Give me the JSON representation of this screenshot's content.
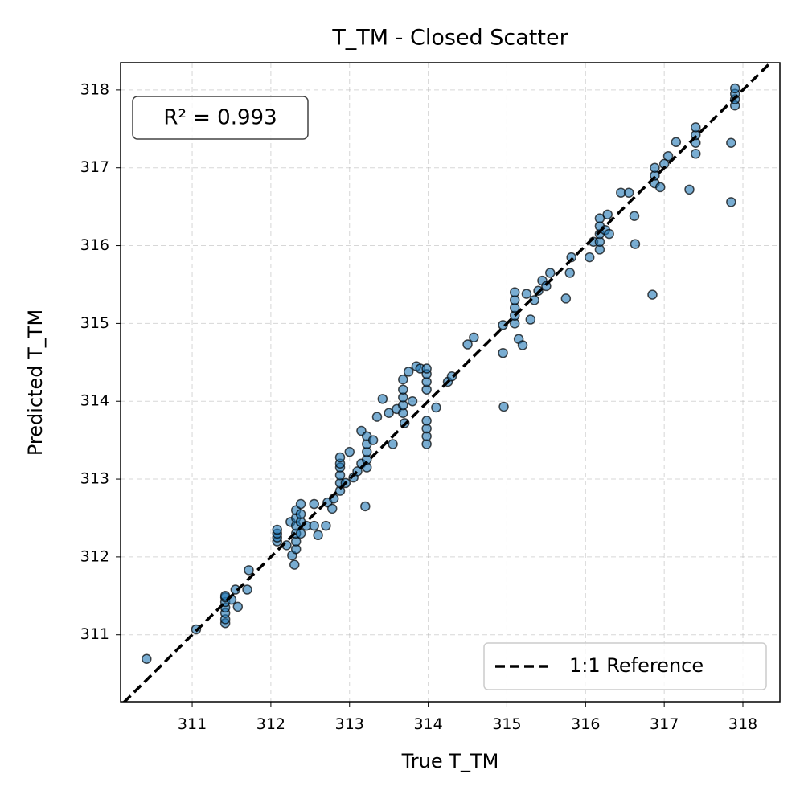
{
  "chart_data": {
    "type": "scatter",
    "title": "T_TM - Closed Scatter",
    "x_label": "True T_TM",
    "y_label": "Predicted T_TM",
    "annotation": "R² = 0.993",
    "xlim": [
      310.09,
      318.47
    ],
    "ylim": [
      310.14,
      318.35
    ],
    "xticks": [
      311,
      312,
      313,
      314,
      315,
      316,
      317,
      318
    ],
    "yticks": [
      311,
      312,
      313,
      314,
      315,
      316,
      317,
      318
    ],
    "grid": true,
    "legend": "lower right",
    "points": {
      "color": "#1f77b4",
      "x": [
        310.42,
        311.05,
        311.42,
        311.42,
        311.42,
        311.42,
        311.42,
        311.42,
        311.42,
        311.5,
        311.58,
        311.55,
        311.7,
        311.72,
        312.08,
        312.08,
        312.08,
        312.08,
        312.2,
        312.27,
        312.3,
        312.25,
        312.32,
        312.32,
        312.32,
        312.32,
        312.32,
        312.32,
        312.38,
        312.38,
        312.38,
        312.38,
        312.45,
        312.55,
        312.6,
        312.55,
        312.7,
        312.72,
        312.78,
        312.8,
        312.88,
        312.88,
        312.88,
        312.88,
        312.88,
        312.88,
        312.95,
        313.0,
        313.05,
        313.1,
        313.15,
        313.15,
        313.22,
        313.22,
        313.22,
        313.22,
        313.22,
        313.2,
        313.3,
        313.35,
        313.42,
        313.5,
        313.55,
        313.6,
        313.68,
        313.68,
        313.68,
        313.68,
        313.68,
        313.75,
        313.7,
        313.8,
        313.85,
        313.9,
        313.98,
        313.98,
        313.98,
        313.98,
        313.98,
        313.98,
        313.98,
        313.98,
        314.1,
        314.25,
        314.3,
        314.5,
        314.58,
        314.95,
        314.96,
        314.95,
        315.1,
        315.1,
        315.1,
        315.1,
        315.1,
        315.15,
        315.2,
        315.25,
        315.3,
        315.35,
        315.4,
        315.45,
        315.55,
        315.5,
        315.75,
        315.8,
        315.82,
        316.05,
        316.1,
        316.18,
        316.18,
        316.18,
        316.18,
        316.18,
        316.25,
        316.28,
        316.3,
        316.45,
        316.55,
        316.62,
        316.63,
        316.85,
        316.88,
        316.88,
        316.88,
        316.95,
        317.0,
        317.05,
        317.15,
        317.32,
        317.4,
        317.4,
        317.4,
        317.4,
        317.85,
        317.85,
        317.9,
        317.9,
        317.9,
        317.9
      ],
      "y": [
        310.69,
        311.07,
        311.15,
        311.2,
        311.28,
        311.35,
        311.42,
        311.48,
        311.5,
        311.45,
        311.36,
        311.58,
        311.58,
        311.83,
        312.2,
        312.25,
        312.3,
        312.35,
        312.15,
        312.02,
        311.9,
        312.45,
        312.1,
        312.2,
        312.3,
        312.4,
        312.5,
        312.6,
        312.3,
        312.45,
        312.55,
        312.68,
        312.4,
        312.4,
        312.28,
        312.68,
        312.4,
        312.7,
        312.62,
        312.75,
        312.85,
        312.95,
        313.05,
        313.15,
        313.2,
        313.28,
        312.95,
        313.35,
        313.02,
        313.1,
        313.2,
        313.62,
        313.15,
        313.25,
        313.35,
        313.45,
        313.55,
        312.65,
        313.5,
        313.8,
        314.03,
        313.85,
        313.45,
        313.9,
        313.85,
        313.95,
        314.05,
        314.15,
        314.28,
        314.38,
        313.72,
        314.0,
        314.45,
        314.42,
        313.45,
        313.55,
        313.65,
        313.75,
        314.15,
        314.25,
        314.35,
        314.42,
        313.92,
        314.25,
        314.32,
        314.73,
        314.82,
        314.62,
        313.93,
        314.98,
        315.0,
        315.1,
        315.2,
        315.3,
        315.4,
        314.8,
        314.72,
        315.38,
        315.05,
        315.3,
        315.42,
        315.55,
        315.65,
        315.48,
        315.32,
        315.65,
        315.85,
        315.85,
        316.05,
        315.95,
        316.05,
        316.15,
        316.25,
        316.35,
        316.2,
        316.4,
        316.15,
        316.68,
        316.68,
        316.38,
        316.02,
        315.37,
        316.8,
        316.9,
        317.0,
        316.75,
        317.05,
        317.15,
        317.33,
        316.72,
        317.18,
        317.32,
        317.42,
        317.52,
        317.32,
        316.56,
        317.8,
        317.88,
        317.95,
        318.02
      ]
    },
    "reference_line": {
      "name": "1:1 Reference",
      "color": "#000000",
      "x": [
        310.0,
        318.5
      ],
      "y": [
        310.0,
        318.5
      ]
    }
  }
}
